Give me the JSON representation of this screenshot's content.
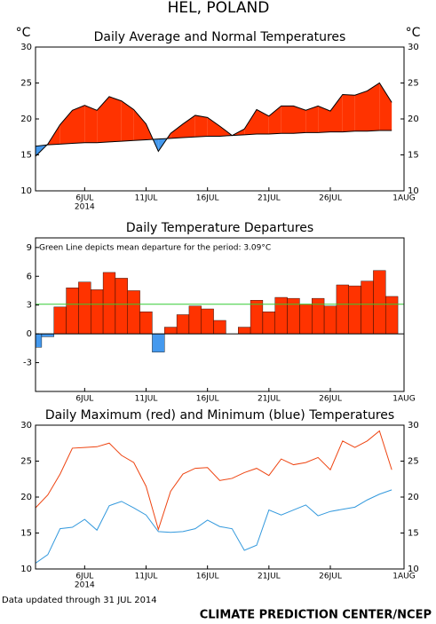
{
  "title": "HEL, POLAND",
  "footer_note": "Data updated through 31 JUL 2014",
  "credit": "CLIMATE PREDICTION CENTER/NCEP",
  "chart_data": [
    {
      "type": "area",
      "title": "Daily Average and Normal Temperatures",
      "y_label": "°C",
      "y2_label": "°C",
      "x": [
        2,
        3,
        4,
        5,
        6,
        7,
        8,
        9,
        10,
        11,
        12,
        13,
        14,
        15,
        16,
        17,
        18,
        19,
        20,
        21,
        22,
        23,
        24,
        25,
        26,
        27,
        28,
        29,
        30,
        31
      ],
      "xlim": [
        2,
        32
      ],
      "xticks": [
        {
          "value": 6,
          "label": "6JUL"
        },
        {
          "value": 11,
          "label": "11JUL"
        },
        {
          "value": 16,
          "label": "16JUL"
        },
        {
          "value": 21,
          "label": "21JUL"
        },
        {
          "value": 26,
          "label": "26JUL"
        },
        {
          "value": 32,
          "label": "1AUG"
        }
      ],
      "x_sublabel": "2014",
      "ylim": [
        10,
        30
      ],
      "yticks": [
        10,
        15,
        20,
        25,
        30
      ],
      "y2lim": [
        10,
        30
      ],
      "y2ticks": [
        10,
        15,
        20,
        25,
        30
      ],
      "series": [
        {
          "color": "#000000",
          "values": [
            14.8,
            16.5,
            19.2,
            21.2,
            21.9,
            21.2,
            23.1,
            22.5,
            21.3,
            19.3,
            15.5,
            18.0,
            19.3,
            20.5,
            20.2,
            19.0,
            17.7,
            18.6,
            21.3,
            20.4,
            21.8,
            21.8,
            21.2,
            21.8,
            21.1,
            23.4,
            23.3,
            23.9,
            25.0,
            22.3
          ]
        },
        {
          "color": "#000000",
          "values": [
            16.2,
            16.4,
            16.5,
            16.6,
            16.7,
            16.7,
            16.8,
            16.9,
            17.0,
            17.1,
            17.2,
            17.3,
            17.4,
            17.5,
            17.6,
            17.6,
            17.7,
            17.8,
            17.9,
            17.9,
            18.0,
            18.0,
            18.1,
            18.1,
            18.2,
            18.2,
            18.3,
            18.3,
            18.4,
            18.4
          ]
        }
      ],
      "above_color": "#ff3300",
      "below_color": "#4499ee"
    },
    {
      "type": "bar",
      "title": "Daily Temperature Departures",
      "annotation": "Green Line depicts mean departure for the period: 3.09°C",
      "x": [
        2,
        3,
        4,
        5,
        6,
        7,
        8,
        9,
        10,
        11,
        12,
        13,
        14,
        15,
        16,
        17,
        18,
        19,
        20,
        21,
        22,
        23,
        24,
        25,
        26,
        27,
        28,
        29,
        30,
        31
      ],
      "xlim": [
        2,
        32
      ],
      "xticks": [
        {
          "value": 6,
          "label": "6JUL"
        },
        {
          "value": 11,
          "label": "11JUL"
        },
        {
          "value": 16,
          "label": "16JUL"
        },
        {
          "value": 21,
          "label": "21JUL"
        },
        {
          "value": 26,
          "label": "26JUL"
        },
        {
          "value": 32,
          "label": "1AUG"
        }
      ],
      "ylim": [
        -6,
        10
      ],
      "yticks": [
        -3,
        0,
        3,
        6,
        9
      ],
      "values": [
        -1.4,
        -0.3,
        2.8,
        4.8,
        5.4,
        4.6,
        6.4,
        5.8,
        4.5,
        2.3,
        -1.9,
        0.7,
        2.0,
        2.9,
        2.6,
        1.4,
        0,
        0.7,
        3.5,
        2.3,
        3.8,
        3.7,
        3.1,
        3.7,
        2.9,
        5.1,
        5.0,
        5.5,
        6.6,
        3.9
      ],
      "positive_color": "#ff3300",
      "negative_color": "#4499ee",
      "mean_line": {
        "value": 3.09,
        "color": "#33cc33"
      }
    },
    {
      "type": "line",
      "title": "Daily Maximum (red) and Minimum (blue) Temperatures",
      "x": [
        2,
        3,
        4,
        5,
        6,
        7,
        8,
        9,
        10,
        11,
        12,
        13,
        14,
        15,
        16,
        17,
        18,
        19,
        20,
        21,
        22,
        23,
        24,
        25,
        26,
        27,
        28,
        29,
        30,
        31
      ],
      "xlim": [
        2,
        32
      ],
      "xticks": [
        {
          "value": 6,
          "label": "6JUL"
        },
        {
          "value": 11,
          "label": "11JUL"
        },
        {
          "value": 16,
          "label": "16JUL"
        },
        {
          "value": 21,
          "label": "21JUL"
        },
        {
          "value": 26,
          "label": "26JUL"
        },
        {
          "value": 32,
          "label": "1AUG"
        }
      ],
      "x_sublabel": "2014",
      "ylim": [
        10,
        30
      ],
      "yticks": [
        10,
        15,
        20,
        25,
        30
      ],
      "y2lim": [
        10,
        30
      ],
      "y2ticks": [
        10,
        15,
        20,
        25,
        30
      ],
      "series": [
        {
          "color": "#ee4411",
          "values": [
            18.5,
            20.3,
            23.2,
            26.8,
            26.9,
            27.0,
            27.5,
            25.8,
            24.8,
            21.5,
            15.5,
            20.8,
            23.2,
            24.0,
            24.1,
            22.3,
            22.6,
            23.4,
            24.0,
            23.0,
            25.3,
            24.5,
            24.8,
            25.5,
            23.8,
            27.8,
            26.9,
            27.8,
            29.2,
            23.8
          ]
        },
        {
          "color": "#3399dd",
          "values": [
            10.8,
            12.0,
            15.6,
            15.8,
            16.9,
            15.4,
            18.8,
            19.4,
            18.5,
            17.5,
            15.2,
            15.1,
            15.2,
            15.6,
            16.8,
            15.9,
            15.6,
            12.6,
            13.3,
            18.2,
            17.5,
            18.2,
            18.9,
            17.4,
            18.0,
            18.3,
            18.6,
            19.6,
            20.4,
            21.0
          ]
        }
      ]
    }
  ]
}
